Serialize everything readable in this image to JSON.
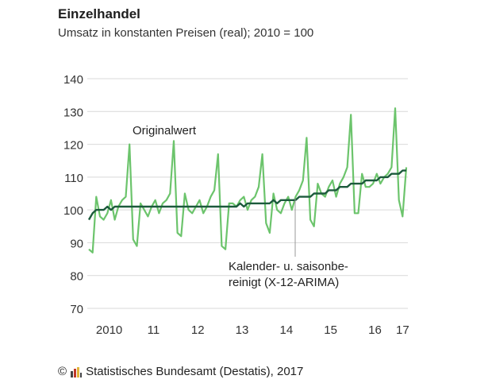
{
  "title": "Einzelhandel",
  "subtitle": "Umsatz in konstanten Preisen (real); 2010 = 100",
  "footer": {
    "copyright_symbol": "©",
    "source": "Statistisches Bundesamt (Destatis), 2017",
    "logo_icon": "destatis-logo-icon"
  },
  "colors": {
    "original": "#6cc46c",
    "adjusted": "#1c5a3c",
    "grid": "#d9d9d9",
    "marker": "#999999"
  },
  "chart_data": {
    "type": "line",
    "title": "Einzelhandel",
    "subtitle": "Umsatz in konstanten Preisen (real); 2010 = 100",
    "xlabel": "",
    "ylabel": "",
    "ylim": [
      70,
      140
    ],
    "yticks": [
      70,
      80,
      90,
      100,
      110,
      120,
      130,
      140
    ],
    "grid": true,
    "x_start": "2010-01",
    "x_end": "2017-03",
    "x_tick_labels": [
      "2010",
      "11",
      "12",
      "13",
      "14",
      "15",
      "16",
      "17"
    ],
    "annotations": {
      "original_label": "Originalwert",
      "adjusted_label": [
        "Kalender- u. saisonbe-",
        "reinigt (X-12-ARIMA)"
      ]
    },
    "series": [
      {
        "name": "Originalwert",
        "values": [
          88,
          87,
          104,
          98,
          97,
          99,
          103,
          97,
          101,
          103,
          104,
          120,
          91,
          89,
          102,
          100,
          98,
          101,
          103,
          99,
          102,
          103,
          105,
          121,
          93,
          92,
          105,
          100,
          99,
          101,
          103,
          99,
          101,
          104,
          106,
          117,
          89,
          88,
          102,
          102,
          101,
          103,
          104,
          100,
          103,
          104,
          107,
          117,
          96,
          93,
          105,
          100,
          99,
          102,
          104,
          100,
          104,
          106,
          109,
          122,
          97,
          95,
          108,
          105,
          104,
          107,
          109,
          104,
          108,
          110,
          113,
          129,
          99,
          99,
          111,
          107,
          107,
          108,
          111,
          108,
          110,
          111,
          113,
          131,
          103,
          98,
          113
        ]
      },
      {
        "name": "Kalender- u. saisonbereinigt (X-12-ARIMA)",
        "values": [
          97,
          99,
          100,
          100,
          100,
          101,
          100,
          101,
          101,
          101,
          101,
          101,
          101,
          101,
          101,
          101,
          101,
          101,
          101,
          101,
          101,
          101,
          101,
          101,
          101,
          101,
          101,
          101,
          101,
          101,
          101,
          101,
          101,
          101,
          101,
          101,
          101,
          101,
          101,
          101,
          101,
          102,
          101,
          102,
          102,
          102,
          102,
          102,
          102,
          102,
          103,
          102,
          103,
          103,
          103,
          103,
          103,
          104,
          104,
          104,
          104,
          105,
          105,
          105,
          105,
          106,
          106,
          106,
          107,
          107,
          107,
          108,
          108,
          108,
          108,
          109,
          109,
          109,
          109,
          110,
          110,
          110,
          111,
          111,
          111,
          112,
          112
        ]
      }
    ]
  }
}
